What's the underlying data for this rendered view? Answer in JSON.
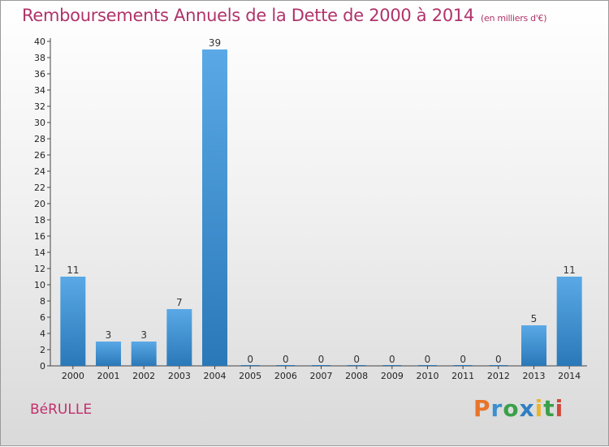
{
  "header": {
    "title": "Remboursements Annuels de la Dette de 2000 à 2014",
    "unit": "(en milliers d'€)"
  },
  "footer": {
    "commune": "BéRULLE",
    "logo_letters": [
      "P",
      "r",
      "o",
      "x",
      "i",
      "t",
      "i"
    ]
  },
  "colors": {
    "title": "#b0336a",
    "bar_light": "#5aa9e6",
    "bar_dark": "#2a78b8"
  },
  "chart_data": {
    "type": "bar",
    "categories": [
      "2000",
      "2001",
      "2002",
      "2003",
      "2004",
      "2005",
      "2006",
      "2007",
      "2008",
      "2009",
      "2010",
      "2011",
      "2012",
      "2013",
      "2014"
    ],
    "values": [
      11,
      3,
      3,
      7,
      39,
      0,
      0,
      0,
      0,
      0,
      0,
      0,
      0,
      5,
      11
    ],
    "title": "Remboursements Annuels de la Dette de 2000 à 2014",
    "ylim": [
      0,
      40
    ],
    "ytick_step": 2,
    "grid": false
  }
}
